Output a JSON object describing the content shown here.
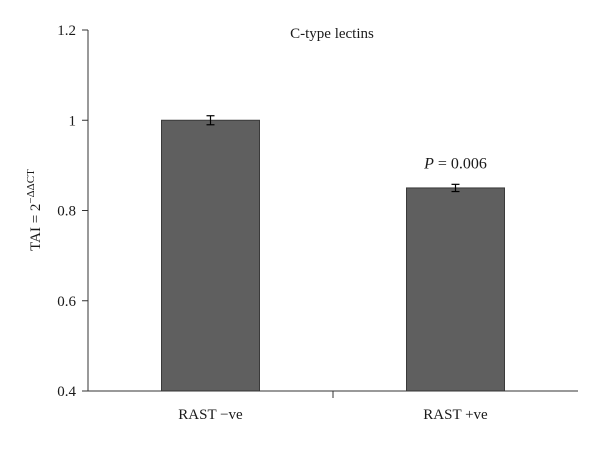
{
  "chart_data": {
    "type": "bar",
    "title": "C-type lectins",
    "xlabel": "",
    "ylabel": "TAI = 2",
    "ylabel_sup": "−ΔΔCT",
    "ylim": [
      0.4,
      1.2
    ],
    "yticks": [
      "0.4",
      "0.6",
      "0.8",
      "1",
      "1.2"
    ],
    "ytick_values": [
      0.4,
      0.6,
      0.8,
      1.0,
      1.2
    ],
    "categories": [
      "RAST −ve",
      "RAST +ve"
    ],
    "values": [
      1.0,
      0.85
    ],
    "errors": [
      0.01,
      0.008
    ],
    "bar_color": "#5f5f5f",
    "grid": false,
    "legend": "none",
    "annotations": [
      {
        "category_index": 1,
        "italic": "P",
        "text": " = 0.006"
      }
    ]
  }
}
